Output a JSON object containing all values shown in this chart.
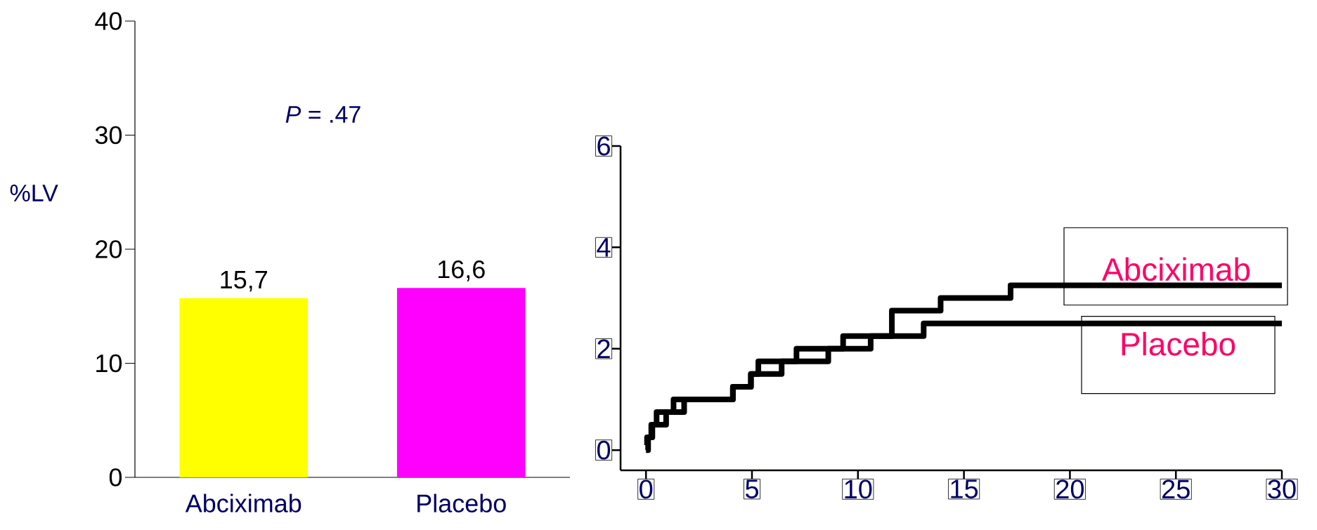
{
  "chart_data": [
    {
      "type": "bar",
      "categories": [
        "Abciximab",
        "Placebo"
      ],
      "values": [
        15.7,
        16.6
      ],
      "colors": [
        "#ffff00",
        "#ff00ff"
      ],
      "value_labels": [
        "15,7",
        "16,6"
      ],
      "ylabel": "%LV",
      "ylim": [
        0,
        40
      ],
      "yticks": [
        0,
        10,
        20,
        30,
        40
      ],
      "annotations": [
        "*P* = .47"
      ]
    },
    {
      "type": "step",
      "xlim": [
        -1.2,
        30
      ],
      "ylim": [
        -0.4,
        6
      ],
      "xticks": [
        0,
        5,
        10,
        15,
        20,
        25,
        30
      ],
      "yticks": [
        0,
        2,
        4,
        6
      ],
      "series": [
        {
          "name": "Abciximab",
          "color": "#000000",
          "x": [
            0,
            0.05,
            0.25,
            0.5,
            1.3,
            4.1,
            4.95,
            5.3,
            7.1,
            9.3,
            11.6,
            13.9,
            17.2,
            30
          ],
          "values": [
            0.1,
            0.25,
            0.5,
            0.75,
            1.0,
            1.25,
            1.5,
            1.75,
            2.0,
            2.25,
            2.75,
            3.0,
            3.25,
            3.25
          ]
        },
        {
          "name": "Placebo",
          "color": "#000000",
          "x": [
            0,
            0.1,
            0.3,
            0.95,
            1.8,
            4.1,
            4.95,
            6.4,
            8.6,
            10.6,
            13.1,
            30
          ],
          "values": [
            0,
            0.25,
            0.5,
            0.75,
            1.0,
            1.25,
            1.5,
            1.75,
            2.0,
            2.25,
            2.5,
            2.5
          ]
        }
      ]
    }
  ]
}
